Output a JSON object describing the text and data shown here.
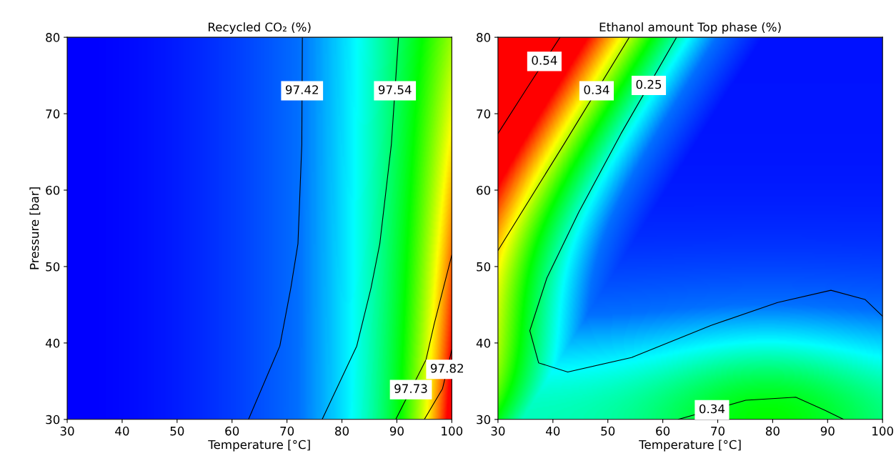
{
  "chart_data": [
    {
      "type": "line",
      "title": "Recycled CO₂ (%)",
      "xlabel": "Temperature [°C]",
      "ylabel": "Pressure [bar]",
      "xlim": [
        30,
        100
      ],
      "ylim": [
        30,
        80
      ],
      "xticks": [
        30,
        40,
        50,
        60,
        70,
        80,
        90,
        100
      ],
      "yticks": [
        30,
        40,
        50,
        60,
        70,
        80
      ],
      "grid": false,
      "legend": false,
      "series": [
        {
          "name": "97.42",
          "color": "#000000",
          "x": [
            72.8,
            72.7,
            72.0,
            70.7,
            68.7,
            63.0
          ],
          "values": [
            80,
            66,
            53,
            47.2,
            39.6,
            30
          ]
        },
        {
          "name": "97.54",
          "color": "#000000",
          "x": [
            90.3,
            89.0,
            86.9,
            85.3,
            82.7,
            76.4
          ],
          "values": [
            80,
            66,
            53,
            47.2,
            39.6,
            30
          ]
        },
        {
          "name": "97.73",
          "color": "#000000",
          "x": [
            100,
            96.8,
            95.3,
            89.8
          ],
          "values": [
            51.5,
            42.5,
            37.8,
            30
          ]
        },
        {
          "name": "97.82",
          "color": "#000000",
          "x": [
            100,
            98.3,
            95.0
          ],
          "values": [
            39.1,
            34,
            30
          ]
        }
      ]
    },
    {
      "type": "line",
      "title": "Ethanol amount Top phase (%)",
      "xlabel": "Temperature [°C]",
      "xlim": [
        30,
        100
      ],
      "ylim": [
        30,
        80
      ],
      "xticks": [
        30,
        40,
        50,
        60,
        70,
        80,
        90,
        100
      ],
      "yticks": [
        30,
        40,
        50,
        60,
        70,
        80
      ],
      "grid": false,
      "legend": false,
      "series": [
        {
          "name": "0.54",
          "color": "#000000",
          "x": [
            41.3,
            35.6,
            30
          ],
          "values": [
            80,
            73.7,
            67.4
          ]
        },
        {
          "name": "0.34",
          "color": "#000000",
          "x": [
            53.9,
            42.0,
            30
          ],
          "values": [
            80,
            66.0,
            52.1
          ]
        },
        {
          "name": "0.25",
          "color": "#000000",
          "x": [
            62.5,
            52.4,
            44.7,
            38.9,
            35.8,
            37.4,
            42.7,
            54.3,
            68.8,
            80.9,
            90.6,
            96.8,
            100
          ],
          "values": [
            80,
            67.4,
            57.1,
            48.5,
            41.6,
            37.4,
            36.2,
            38.1,
            42.3,
            45.3,
            46.9,
            45.7,
            43.5
          ]
        },
        {
          "name": "0.34",
          "color": "#000000",
          "x": [
            62.8,
            75.1,
            84.2,
            89.5,
            92.9
          ],
          "values": [
            30,
            32.5,
            32.9,
            31.2,
            30
          ]
        }
      ]
    }
  ]
}
